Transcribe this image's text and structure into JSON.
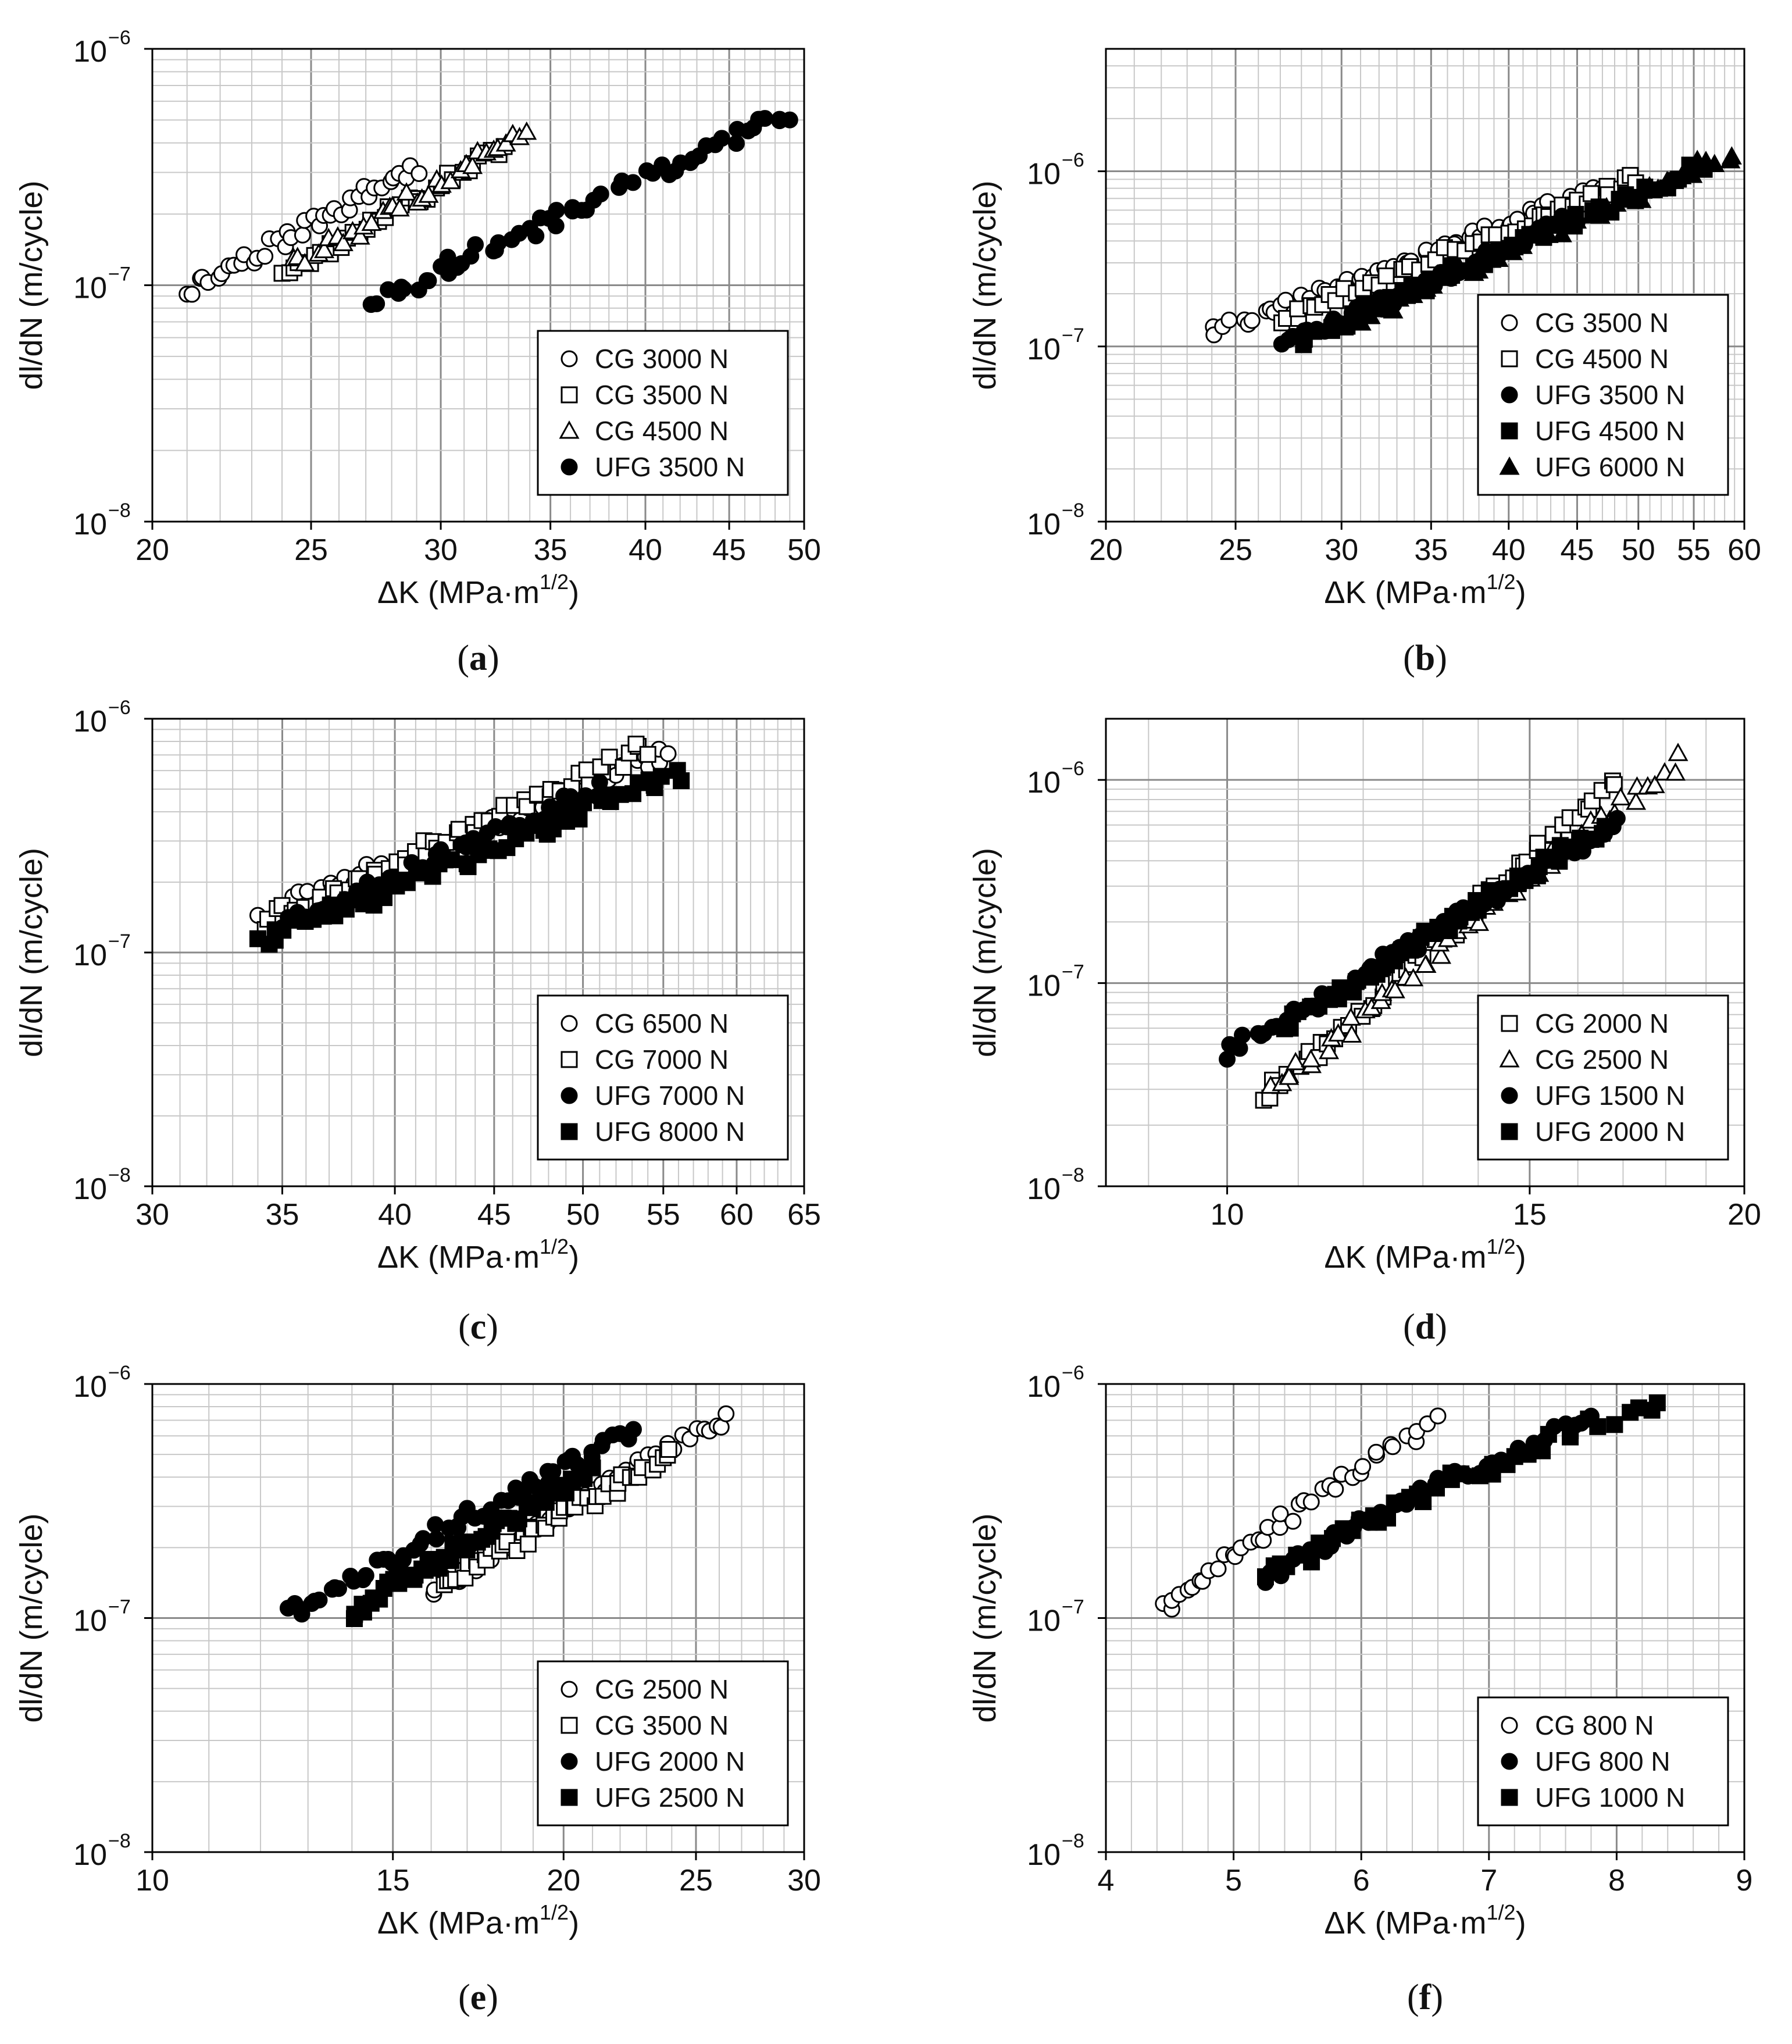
{
  "figure": {
    "panel_count": 6
  },
  "chart_data": [
    {
      "type": "scatter",
      "label": "(a)",
      "letter": "a",
      "xlabel": "ΔK (MPa·m",
      "xlabel_sup": "1/2",
      "xlabel_end": ")",
      "ylabel": "dl/dN (m/cycle)",
      "xscale": "log",
      "xlim": [
        20,
        50
      ],
      "xticks": [
        20,
        25,
        30,
        35,
        40,
        45,
        50
      ],
      "yscale": "log",
      "ylim": [
        1e-08,
        1e-06
      ],
      "ytick_exponents": [
        -8,
        -7,
        -6
      ],
      "grid": true,
      "legend_position": "lower-right",
      "series": [
        {
          "name": "CG 3000 N",
          "marker": "circle-open",
          "x_range": [
            21.0,
            29.1
          ],
          "y_range": [
            9.5e-08,
            3.2e-07
          ],
          "n": 40
        },
        {
          "name": "CG 3500 N",
          "marker": "square-open",
          "x_range": [
            24.0,
            32.9
          ],
          "y_range": [
            1.1e-07,
            3.8e-07
          ],
          "n": 36
        },
        {
          "name": "CG 4500 N",
          "marker": "triangle-open",
          "x_range": [
            24.4,
            34.0
          ],
          "y_range": [
            1.2e-07,
            4.6e-07
          ],
          "n": 34
        },
        {
          "name": "UFG 3500 N",
          "marker": "circle-filled",
          "x_range": [
            27.2,
            49.0
          ],
          "y_range": [
            8.5e-08,
            5.4e-07
          ],
          "n": 58
        }
      ]
    },
    {
      "type": "scatter",
      "label": "(b)",
      "letter": "b",
      "xlabel": "ΔK (MPa·m",
      "xlabel_sup": "1/2",
      "xlabel_end": ")",
      "ylabel": "dl/dN (m/cycle)",
      "xscale": "log",
      "xlim": [
        20,
        60
      ],
      "xticks": [
        20,
        25,
        30,
        35,
        40,
        45,
        50,
        55,
        60
      ],
      "yscale": "log",
      "ylim": [
        1e-08,
        5e-06
      ],
      "ytick_exponents": [
        -8,
        -7,
        -6
      ],
      "grid": true,
      "legend_position": "lower-right",
      "series": [
        {
          "name": "CG 3500 N",
          "marker": "circle-open",
          "x_range": [
            24.0,
            47.0
          ],
          "y_range": [
            1.2e-07,
            8e-07
          ],
          "n": 55
        },
        {
          "name": "CG 4500 N",
          "marker": "square-open",
          "x_range": [
            27.0,
            50.0
          ],
          "y_range": [
            1.4e-07,
            9.2e-07
          ],
          "n": 50
        },
        {
          "name": "UFG 3500 N",
          "marker": "circle-filled",
          "x_range": [
            27.0,
            45.0
          ],
          "y_range": [
            1e-07,
            5.5e-07
          ],
          "n": 50
        },
        {
          "name": "UFG 4500 N",
          "marker": "square-filled",
          "x_range": [
            28.0,
            56.0
          ],
          "y_range": [
            1.1e-07,
            1.1e-06
          ],
          "n": 50
        },
        {
          "name": "UFG 6000 N",
          "marker": "triangle-filled",
          "x_range": [
            30.0,
            59.0
          ],
          "y_range": [
            1.3e-07,
            1.3e-06
          ],
          "n": 50
        }
      ]
    },
    {
      "type": "scatter",
      "label": "(c)",
      "letter": "c",
      "xlabel": "ΔK (MPa·m",
      "xlabel_sup": "1/2",
      "xlabel_end": ")",
      "ylabel": "dl/dN (m/cycle)",
      "xscale": "log",
      "xlim": [
        30,
        65
      ],
      "xticks": [
        30,
        35,
        40,
        45,
        50,
        55,
        60,
        65
      ],
      "yscale": "log",
      "ylim": [
        1e-08,
        1e-06
      ],
      "ytick_exponents": [
        -8,
        -7,
        -6
      ],
      "grid": true,
      "legend_position": "lower-right",
      "series": [
        {
          "name": "CG 6500 N",
          "marker": "circle-open",
          "x_range": [
            34.0,
            55.5
          ],
          "y_range": [
            1.4e-07,
            7.2e-07
          ],
          "n": 55
        },
        {
          "name": "CG 7000 N",
          "marker": "square-open",
          "x_range": [
            34.3,
            54.0
          ],
          "y_range": [
            1.35e-07,
            7.5e-07
          ],
          "n": 55
        },
        {
          "name": "UFG 7000 N",
          "marker": "circle-filled",
          "x_range": [
            35.0,
            51.0
          ],
          "y_range": [
            1.3e-07,
            5e-07
          ],
          "n": 50
        },
        {
          "name": "UFG 8000 N",
          "marker": "square-filled",
          "x_range": [
            34.0,
            56.3
          ],
          "y_range": [
            1.1e-07,
            6e-07
          ],
          "n": 55
        }
      ]
    },
    {
      "type": "scatter",
      "label": "(d)",
      "letter": "d",
      "xlabel": "ΔK (MPa·m",
      "xlabel_sup": "1/2",
      "xlabel_end": ")",
      "ylabel": "dl/dN (m/cycle)",
      "xscale": "log",
      "xlim": [
        8.5,
        20
      ],
      "xticks": [
        10,
        15,
        20
      ],
      "yscale": "log",
      "ylim": [
        1e-08,
        2e-06
      ],
      "ytick_exponents": [
        -8,
        -7,
        -6
      ],
      "grid": true,
      "legend_position": "lower-right",
      "series": [
        {
          "name": "CG 2000 N",
          "marker": "square-open",
          "x_range": [
            10.5,
            16.8
          ],
          "y_range": [
            2.7e-08,
            9.8e-07
          ],
          "n": 55
        },
        {
          "name": "CG 2500 N",
          "marker": "triangle-open",
          "x_range": [
            10.6,
            18.3
          ],
          "y_range": [
            3e-08,
            1.25e-06
          ],
          "n": 55
        },
        {
          "name": "UFG 1500 N",
          "marker": "circle-filled",
          "x_range": [
            10.0,
            16.9
          ],
          "y_range": [
            4.5e-08,
            6.2e-07
          ],
          "n": 60
        },
        {
          "name": "UFG 2000 N",
          "marker": "square-filled",
          "x_range": [
            10.8,
            16.6
          ],
          "y_range": [
            6e-08,
            6e-07
          ],
          "n": 55
        }
      ]
    },
    {
      "type": "scatter",
      "label": "(e)",
      "letter": "e",
      "xlabel": "ΔK (MPa·m",
      "xlabel_sup": "1/2",
      "xlabel_end": ")",
      "ylabel": "dl/dN (m/cycle)",
      "xscale": "log",
      "xlim": [
        10,
        30
      ],
      "xticks": [
        10,
        15,
        20,
        25,
        30
      ],
      "yscale": "log",
      "ylim": [
        1e-08,
        1e-06
      ],
      "ytick_exponents": [
        -8,
        -7,
        -6
      ],
      "grid": true,
      "legend_position": "lower-right",
      "series": [
        {
          "name": "CG 2500 N",
          "marker": "circle-open",
          "x_range": [
            16.0,
            26.3
          ],
          "y_range": [
            1.35e-07,
            7.3e-07
          ],
          "n": 50
        },
        {
          "name": "CG 3500 N",
          "marker": "square-open",
          "x_range": [
            16.3,
            24.0
          ],
          "y_range": [
            1.4e-07,
            5e-07
          ],
          "n": 45
        },
        {
          "name": "UFG 2000 N",
          "marker": "circle-filled",
          "x_range": [
            12.5,
            22.5
          ],
          "y_range": [
            1.05e-07,
            6.3e-07
          ],
          "n": 55
        },
        {
          "name": "UFG 2500 N",
          "marker": "square-filled",
          "x_range": [
            14.0,
            21.0
          ],
          "y_range": [
            1.05e-07,
            4.3e-07
          ],
          "n": 50
        }
      ]
    },
    {
      "type": "scatter",
      "label": "(f)",
      "letter": "f",
      "xlabel": "ΔK (MPa·m",
      "xlabel_sup": "1/2",
      "xlabel_end": ")",
      "ylabel": "dl/dN (m/cycle)",
      "xscale": "linear",
      "xlim": [
        4,
        9
      ],
      "xticks": [
        4,
        5,
        6,
        7,
        8,
        9
      ],
      "yscale": "log",
      "ylim": [
        1e-08,
        1e-06
      ],
      "ytick_exponents": [
        -8,
        -7,
        -6
      ],
      "grid": true,
      "legend_position": "lower-right",
      "series": [
        {
          "name": "CG 800 N",
          "marker": "circle-open",
          "x_range": [
            4.45,
            6.6
          ],
          "y_range": [
            1.1e-07,
            6.8e-07
          ],
          "n": 40
        },
        {
          "name": "UFG 800 N",
          "marker": "circle-filled",
          "x_range": [
            5.25,
            7.8
          ],
          "y_range": [
            1.5e-07,
            7.2e-07
          ],
          "n": 40
        },
        {
          "name": "UFG 1000 N",
          "marker": "square-filled",
          "x_range": [
            5.25,
            8.35
          ],
          "y_range": [
            1.5e-07,
            8.7e-07
          ],
          "n": 40
        }
      ]
    }
  ]
}
